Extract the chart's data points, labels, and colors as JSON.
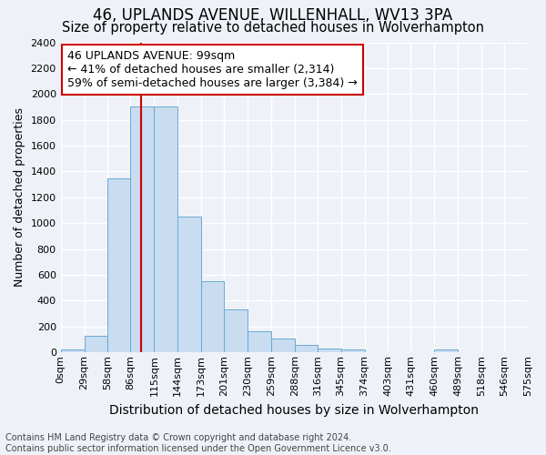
{
  "title": "46, UPLANDS AVENUE, WILLENHALL, WV13 3PA",
  "subtitle": "Size of property relative to detached houses in Wolverhampton",
  "xlabel": "Distribution of detached houses by size in Wolverhampton",
  "ylabel": "Number of detached properties",
  "footer_line1": "Contains HM Land Registry data © Crown copyright and database right 2024.",
  "footer_line2": "Contains public sector information licensed under the Open Government Licence v3.0.",
  "annotation_line1": "46 UPLANDS AVENUE: 99sqm",
  "annotation_line2": "← 41% of detached houses are smaller (2,314)",
  "annotation_line3": "59% of semi-detached houses are larger (3,384) →",
  "bar_color": "#c9dcf0",
  "bar_edge_color": "#6aaad4",
  "redline_color": "#cc0000",
  "redline_x": 99,
  "ylim": [
    0,
    2400
  ],
  "bin_edges": [
    0,
    29,
    58,
    86,
    115,
    144,
    173,
    201,
    230,
    259,
    288,
    316,
    345,
    374,
    403,
    431,
    460,
    489,
    518,
    546,
    575
  ],
  "bar_heights": [
    20,
    130,
    1350,
    1900,
    1900,
    1050,
    550,
    335,
    165,
    105,
    60,
    30,
    25,
    0,
    5,
    0,
    20,
    0,
    0,
    5
  ],
  "tick_labels": [
    "0sqm",
    "29sqm",
    "58sqm",
    "86sqm",
    "115sqm",
    "144sqm",
    "173sqm",
    "201sqm",
    "230sqm",
    "259sqm",
    "288sqm",
    "316sqm",
    "345sqm",
    "374sqm",
    "403sqm",
    "431sqm",
    "460sqm",
    "489sqm",
    "518sqm",
    "546sqm",
    "575sqm"
  ],
  "background_color": "#eef2f8",
  "grid_color": "#ffffff",
  "title_fontsize": 12,
  "subtitle_fontsize": 10.5,
  "xlabel_fontsize": 10,
  "ylabel_fontsize": 9,
  "tick_fontsize": 8,
  "annotation_fontsize": 9,
  "footer_fontsize": 7
}
